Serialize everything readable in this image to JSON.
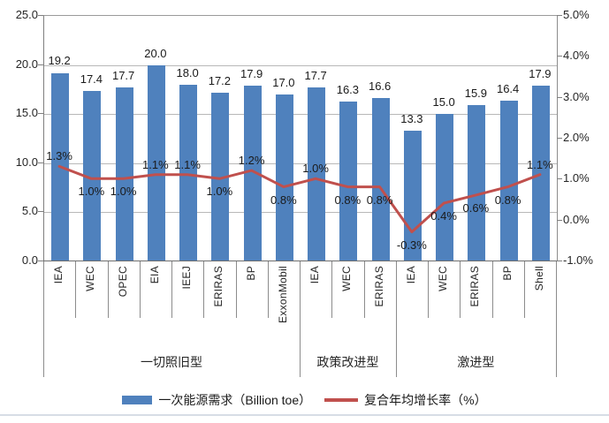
{
  "chart_data": {
    "type": "bar",
    "subtype": "bar-line combo, dual axis",
    "title": "",
    "categories": [
      "IEA",
      "WEC",
      "OPEC",
      "EIA",
      "IEEJ",
      "ERIRAS",
      "BP",
      "ExxonMobil",
      "IEA",
      "WEC",
      "ERIRAS",
      "IEA",
      "WEC",
      "ERIRAS",
      "BP",
      "Shell"
    ],
    "groups": [
      {
        "label": "一切照旧型",
        "span": 8
      },
      {
        "label": "政策改进型",
        "span": 3
      },
      {
        "label": "激进型",
        "span": 5
      }
    ],
    "series": [
      {
        "name": "一次能源需求（Billion toe）",
        "type": "bar",
        "axis": "left",
        "color": "#4F81BD",
        "values": [
          19.2,
          17.4,
          17.7,
          20.0,
          18.0,
          17.2,
          17.9,
          17.0,
          17.7,
          16.3,
          16.6,
          13.3,
          15.0,
          15.9,
          16.4,
          17.9
        ],
        "labels": [
          "19.2",
          "17.4",
          "17.7",
          "20.0",
          "18.0",
          "17.2",
          "17.9",
          "17.0",
          "17.7",
          "16.3",
          "16.6",
          "13.3",
          "15.0",
          "15.9",
          "16.4",
          "17.9"
        ]
      },
      {
        "name": "复合年均增长率（%）",
        "type": "line",
        "axis": "right",
        "color": "#C0504D",
        "values": [
          1.3,
          1.0,
          1.0,
          1.1,
          1.1,
          1.0,
          1.2,
          0.8,
          1.0,
          0.8,
          0.8,
          -0.3,
          0.4,
          0.6,
          0.8,
          1.1
        ],
        "labels": [
          "1.3%",
          "1.0%",
          "1.0%",
          "1.1%",
          "1.1%",
          "1.0%",
          "1.2%",
          "0.8%",
          "1.0%",
          "0.8%",
          "0.8%",
          "-0.3%",
          "0.4%",
          "0.6%",
          "0.8%",
          "1.1%"
        ],
        "label_side": [
          "above",
          "below",
          "below",
          "above",
          "above",
          "below",
          "above",
          "below",
          "above",
          "below",
          "below",
          "below",
          "below",
          "below",
          "below",
          "above"
        ]
      }
    ],
    "left_axis": {
      "min": 0,
      "max": 25,
      "step": 5,
      "tick_labels": [
        "25.0",
        "20.0",
        "15.0",
        "10.0",
        "5.0",
        "0.0"
      ]
    },
    "right_axis": {
      "min": -1,
      "max": 5,
      "step": 1,
      "tick_labels": [
        "5.0%",
        "4.0%",
        "3.0%",
        "2.0%",
        "1.0%",
        "0.0%",
        "-1.0%"
      ]
    },
    "grid": "horizontal gridlines at left-axis intervals",
    "legend_position": "bottom-center",
    "xlabel": "",
    "ylabel": ""
  },
  "colors": {
    "bar": "#4F81BD",
    "line": "#C0504D",
    "gridline": "#b8b8b8",
    "axis_text": "#262626"
  }
}
